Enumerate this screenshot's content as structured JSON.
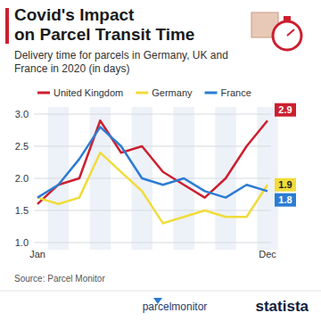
{
  "chart_data": {
    "type": "line",
    "title": "Covid's Impact\non Parcel Transit Time",
    "subtitle": "Delivery time for parcels in Germany, UK and France in 2020 (in days)",
    "categories": [
      "Jan",
      null,
      null,
      null,
      null,
      null,
      null,
      null,
      null,
      null,
      null,
      "Dec"
    ],
    "series": [
      {
        "name": "United Kingdom",
        "color": "#cc1f2f",
        "values": [
          1.6,
          1.9,
          2.0,
          2.9,
          2.4,
          2.5,
          2.1,
          1.9,
          1.7,
          2.0,
          2.5,
          2.9
        ]
      },
      {
        "name": "Germany",
        "color": "#f0dc3a",
        "values": [
          1.7,
          1.6,
          1.7,
          2.4,
          2.1,
          1.8,
          1.3,
          1.4,
          1.5,
          1.4,
          1.4,
          1.9
        ]
      },
      {
        "name": "France",
        "color": "#2b7cd3",
        "values": [
          1.7,
          1.9,
          2.3,
          2.8,
          2.5,
          2.0,
          1.9,
          2.0,
          1.8,
          1.7,
          1.9,
          1.8
        ]
      }
    ],
    "ylim": [
      1.0,
      3.0
    ],
    "yticks": [
      {
        "value": 1.0,
        "label": "1.0"
      },
      {
        "value": 1.5,
        "label": "1.5"
      },
      {
        "value": 2.0,
        "label": "2.0"
      },
      {
        "value": 2.5,
        "label": "2.5"
      },
      {
        "value": 3.0,
        "label": "3.0"
      }
    ],
    "grid": true,
    "legend": "top"
  },
  "footer": {
    "source": "Source: Parcel Monitor",
    "logos": [
      "parcelmonitor",
      "statista"
    ]
  }
}
